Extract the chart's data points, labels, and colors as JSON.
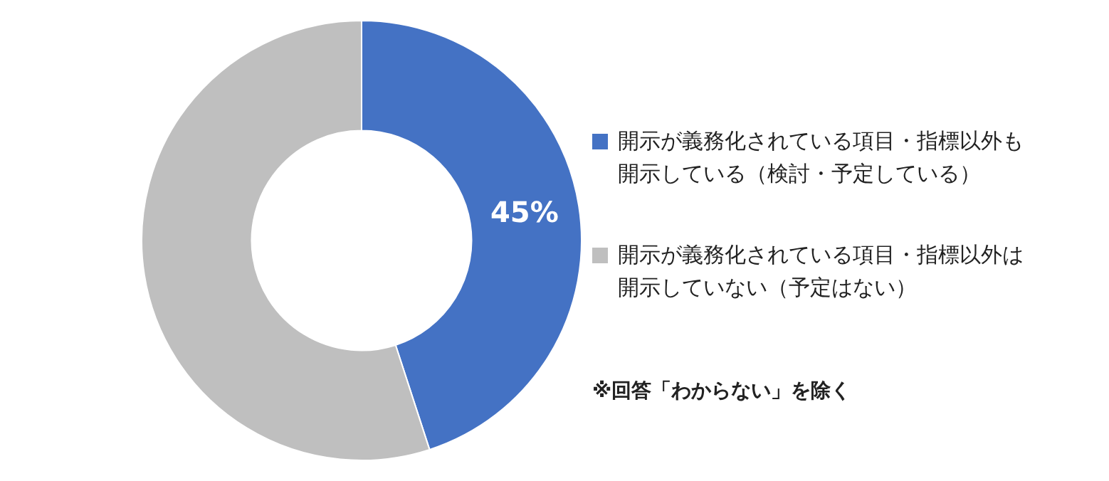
{
  "chart_data": {
    "type": "donut",
    "categories": [
      "開示が義務化されている項目・指標以外も開示している（検討・予定している）",
      "開示が義務化されている項目・指標以外は開示していない（予定はない）"
    ],
    "values": [
      45,
      55
    ],
    "colors": [
      "#4472c4",
      "#bfbfbf"
    ],
    "value_labels": [
      "45%",
      null
    ],
    "legend": "right",
    "annotations": [
      "※回答「わからない」を除く"
    ]
  }
}
